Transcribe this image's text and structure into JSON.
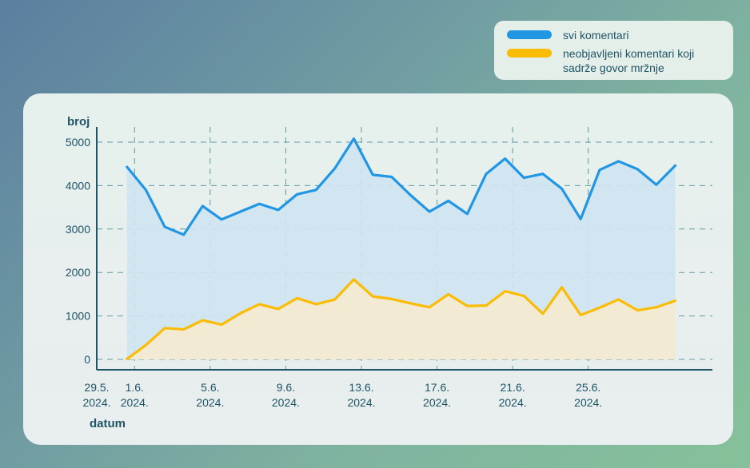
{
  "legend": [
    {
      "label": "svi komentari",
      "color": "#2196e3"
    },
    {
      "label": "neobjavljeni komentari koji sadrže govor mržnje",
      "color": "#fbbc05"
    }
  ],
  "chart_data": {
    "type": "area",
    "ylabel": "broj",
    "xlabel": "datum",
    "ylim": [
      0,
      5000
    ],
    "yticks": [
      0,
      1000,
      2000,
      3000,
      4000,
      5000
    ],
    "xticks": [
      {
        "line1": "29.5.",
        "line2": "2024.",
        "day": -1
      },
      {
        "line1": "1.6.",
        "line2": "2024.",
        "day": 1
      },
      {
        "line1": "5.6.",
        "line2": "2024.",
        "day": 5
      },
      {
        "line1": "9.6.",
        "line2": "2024.",
        "day": 9
      },
      {
        "line1": "13.6.",
        "line2": "2024.",
        "day": 13
      },
      {
        "line1": "17.6.",
        "line2": "2024.",
        "day": 17
      },
      {
        "line1": "21.6.",
        "line2": "2024.",
        "day": 21
      },
      {
        "line1": "25.6.",
        "line2": "2024.",
        "day": 25
      }
    ],
    "grid": true,
    "x": [
      0.6,
      1.6,
      2.6,
      3.6,
      4.6,
      5.6,
      6.6,
      7.6,
      8.6,
      9.6,
      10.6,
      11.6,
      12.6,
      13.6,
      14.6,
      15.6,
      16.6,
      17.6,
      18.6,
      19.6,
      20.6,
      21.6,
      22.6,
      23.6,
      24.6,
      25.6,
      26.6,
      27.6,
      28.6,
      29.6
    ],
    "series": [
      {
        "name": "svi komentari",
        "color": "#2196e3",
        "fill": "#cfe4f2",
        "values": [
          4430,
          3900,
          3050,
          2870,
          3530,
          3220,
          3400,
          3580,
          3440,
          3800,
          3900,
          4400,
          5080,
          4250,
          4200,
          3780,
          3400,
          3650,
          3350,
          4270,
          4620,
          4180,
          4270,
          3930,
          3230,
          4360,
          4560,
          4380,
          4020,
          4460
        ]
      },
      {
        "name": "neobjavljeni komentari koji sadrže govor mržnje",
        "color": "#fbbc05",
        "fill": "#f3ead0",
        "values": [
          10,
          330,
          720,
          690,
          900,
          800,
          1060,
          1270,
          1160,
          1410,
          1270,
          1380,
          1840,
          1450,
          1390,
          1290,
          1200,
          1500,
          1230,
          1240,
          1570,
          1460,
          1050,
          1660,
          1020,
          1190,
          1380,
          1130,
          1200,
          1350
        ]
      }
    ]
  }
}
